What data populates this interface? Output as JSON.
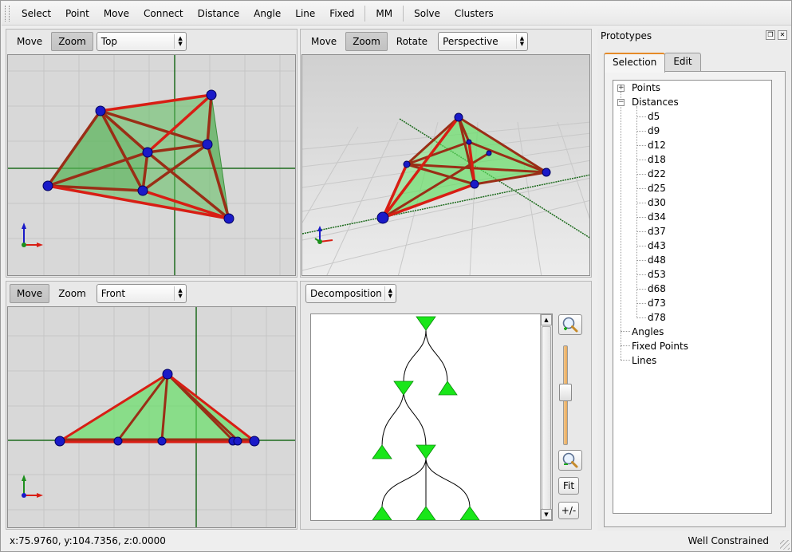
{
  "toolbar": {
    "items": [
      "Select",
      "Point",
      "Move",
      "Connect",
      "Distance",
      "Angle",
      "Line",
      "Fixed",
      "MM",
      "Solve",
      "Clusters"
    ]
  },
  "views": {
    "top": {
      "move_label": "Move",
      "zoom_label": "Zoom",
      "mode_value": "Top",
      "active_button": "Zoom"
    },
    "perspective": {
      "move_label": "Move",
      "zoom_label": "Zoom",
      "rotate_label": "Rotate",
      "mode_value": "Perspective",
      "active_button": "Zoom"
    },
    "front": {
      "move_label": "Move",
      "zoom_label": "Zoom",
      "mode_value": "Front",
      "active_button": "Move"
    }
  },
  "decomposition": {
    "combo_value": "Decomposition",
    "fit_label": "Fit",
    "plusminus_label": "+/-",
    "zoom_in_icon": "zoom-in-icon",
    "zoom_out_icon": "zoom-out-icon"
  },
  "prototypes": {
    "title": "Prototypes",
    "tabs": [
      "Selection",
      "Edit"
    ],
    "active_tab": "Selection",
    "tree": {
      "points": "Points",
      "distances": "Distances",
      "distance_items": [
        "d5",
        "d9",
        "d12",
        "d18",
        "d22",
        "d25",
        "d30",
        "d34",
        "d37",
        "d43",
        "d48",
        "d53",
        "d68",
        "d73",
        "d78"
      ],
      "angles": "Angles",
      "fixed_points": "Fixed Points",
      "lines": "Lines"
    }
  },
  "status": {
    "coords": "x:75.9760, y:104.7356, z:0.0000",
    "state": "Well Constrained"
  },
  "colors": {
    "viewport_bg": "#d8d8d8",
    "edge_red": "#cc1a12",
    "edge_brown": "#9a3a1a",
    "node_blue": "#1a1ac8",
    "face_green": "#5fcf5f",
    "axis_green": "#1d6b1d",
    "tab_accent": "#e58b28",
    "decomp_node": "#19e619"
  }
}
